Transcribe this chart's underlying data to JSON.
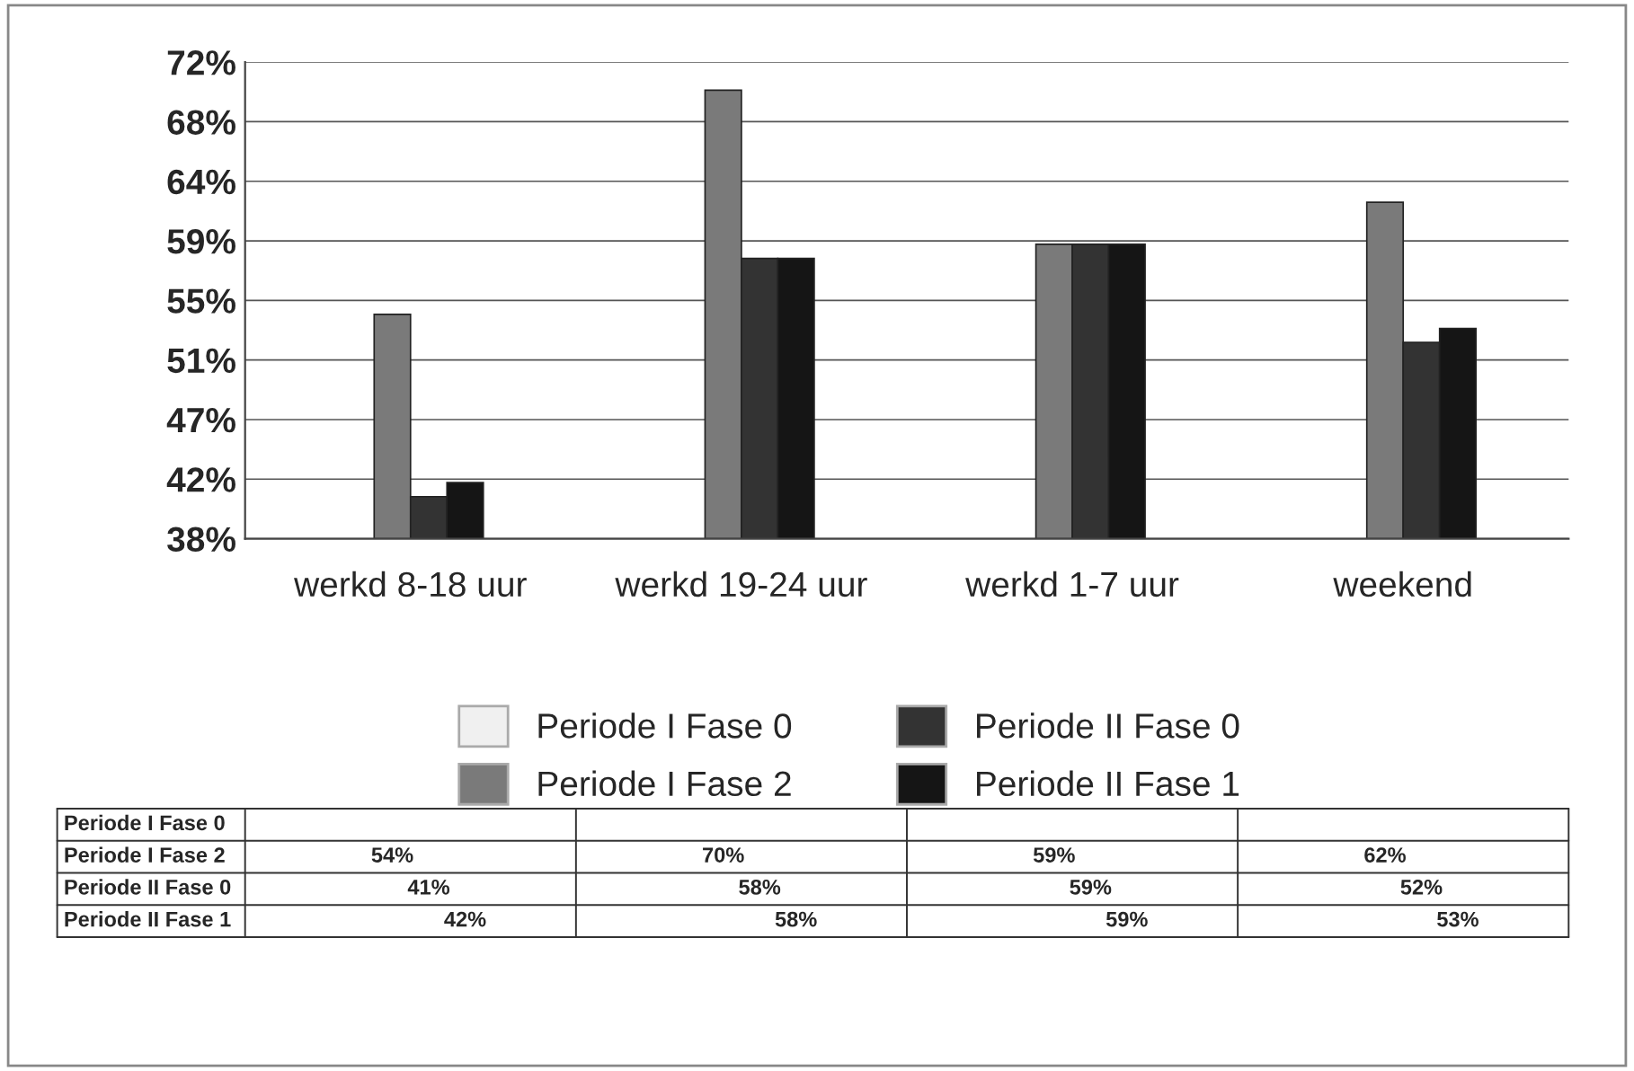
{
  "chart_data": {
    "type": "bar",
    "categories": [
      "werkd 8-18 uur",
      "werkd 19-24 uur",
      "werkd 1-7 uur",
      "weekend"
    ],
    "series": [
      {
        "name": "Periode I Fase 0",
        "color": "#f0f0f0",
        "values": [
          null,
          null,
          null,
          null
        ],
        "value_labels": [
          null,
          null,
          null,
          null
        ]
      },
      {
        "name": "Periode I Fase 2",
        "color": "#7a7a7a",
        "values": [
          54,
          70,
          59,
          62
        ],
        "value_labels": [
          "54%",
          "70%",
          "59%",
          "62%"
        ]
      },
      {
        "name": "Periode II Fase 0",
        "color": "#333333",
        "values": [
          41,
          58,
          59,
          52
        ],
        "value_labels": [
          "41%",
          "58%",
          "59%",
          "52%"
        ]
      },
      {
        "name": "Periode II Fase 1",
        "color": "#151515",
        "values": [
          42,
          58,
          59,
          53
        ],
        "value_labels": [
          "42%",
          "58%",
          "59%",
          "53%"
        ]
      }
    ],
    "ylim": [
      38,
      72
    ],
    "yticks": [
      {
        "value": 38,
        "label": "38%"
      },
      {
        "value": 42.25,
        "label": "42%"
      },
      {
        "value": 46.5,
        "label": "47%"
      },
      {
        "value": 50.75,
        "label": "51%"
      },
      {
        "value": 55,
        "label": "55%"
      },
      {
        "value": 59.25,
        "label": "59%"
      },
      {
        "value": 63.5,
        "label": "64%"
      },
      {
        "value": 67.75,
        "label": "68%"
      },
      {
        "value": 72,
        "label": "72%"
      }
    ],
    "grid": "y",
    "legend": "bottom"
  }
}
